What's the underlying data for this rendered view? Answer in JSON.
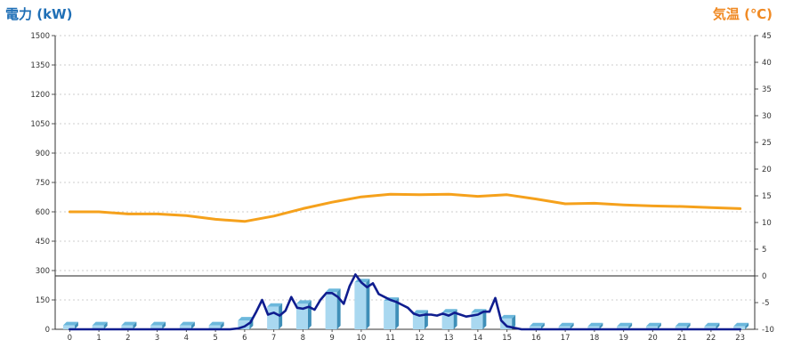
{
  "chart_data": {
    "type": "bar",
    "left_axis_title": "電力 (kW)",
    "right_axis_title": "気温 (℃)",
    "categories": [
      "0",
      "1",
      "2",
      "3",
      "4",
      "5",
      "6",
      "7",
      "8",
      "9",
      "10",
      "11",
      "12",
      "13",
      "14",
      "15",
      "16",
      "17",
      "18",
      "19",
      "20",
      "21",
      "22",
      "23"
    ],
    "left_ticks": [
      "1500",
      "1350",
      "1200",
      "1050",
      "900",
      "750",
      "600",
      "450",
      "300",
      "150",
      "0"
    ],
    "right_ticks": [
      "45",
      "40",
      "35",
      "30",
      "25",
      "20",
      "15",
      "10",
      "5",
      "0",
      "-5",
      "-10"
    ],
    "ylim_power": [
      0,
      1500
    ],
    "ylim_temp": [
      -10,
      45
    ],
    "grid": true,
    "bars": [
      {
        "name": "power_hourly",
        "values": [
          20,
          20,
          20,
          20,
          20,
          20,
          45,
          115,
          130,
          190,
          240,
          145,
          80,
          85,
          85,
          55,
          15,
          15,
          15,
          15,
          15,
          15,
          15,
          15
        ],
        "colors": {
          "face": "#a9d8f0",
          "side": "#3f8fb8",
          "top": "#6cb8dc"
        }
      }
    ],
    "line_power": {
      "color": "#0f1d8f",
      "x": [
        0,
        0.5,
        1,
        1.5,
        2,
        2.5,
        3,
        3.5,
        4,
        4.5,
        5,
        5.5,
        5.8,
        6,
        6.2,
        6.4,
        6.6,
        6.8,
        7,
        7.2,
        7.4,
        7.6,
        7.8,
        8,
        8.2,
        8.4,
        8.6,
        8.8,
        9,
        9.2,
        9.4,
        9.6,
        9.8,
        10,
        10.2,
        10.4,
        10.6,
        10.8,
        11,
        11.2,
        11.4,
        11.6,
        11.8,
        12,
        12.2,
        12.4,
        12.6,
        12.8,
        13,
        13.2,
        13.4,
        13.6,
        13.8,
        14,
        14.2,
        14.4,
        14.6,
        14.8,
        15,
        15.5,
        16,
        17,
        18,
        19,
        20,
        21,
        22,
        23
      ],
      "y": [
        0,
        0,
        0,
        0,
        0,
        0,
        0,
        0,
        0,
        0,
        0,
        0,
        5,
        15,
        35,
        90,
        150,
        75,
        85,
        70,
        95,
        165,
        110,
        105,
        115,
        100,
        150,
        185,
        185,
        165,
        130,
        220,
        280,
        240,
        215,
        235,
        180,
        165,
        150,
        140,
        125,
        110,
        80,
        70,
        75,
        75,
        70,
        80,
        70,
        85,
        75,
        65,
        70,
        75,
        90,
        90,
        160,
        45,
        15,
        0,
        0,
        0,
        0,
        0,
        0,
        0,
        0,
        0
      ]
    },
    "line_temp": {
      "color": "#f5a11c",
      "x": [
        0,
        1,
        2,
        3,
        4,
        5,
        6,
        7,
        8,
        9,
        10,
        11,
        12,
        13,
        14,
        15,
        16,
        17,
        18,
        19,
        20,
        21,
        22,
        23
      ],
      "y": [
        12,
        12,
        11.6,
        11.6,
        11.3,
        10.6,
        10.2,
        11.2,
        12.6,
        13.8,
        14.8,
        15.3,
        15.2,
        15.3,
        14.9,
        15.2,
        14.4,
        13.5,
        13.6,
        13.3,
        13.1,
        13,
        12.8,
        12.6
      ]
    }
  }
}
